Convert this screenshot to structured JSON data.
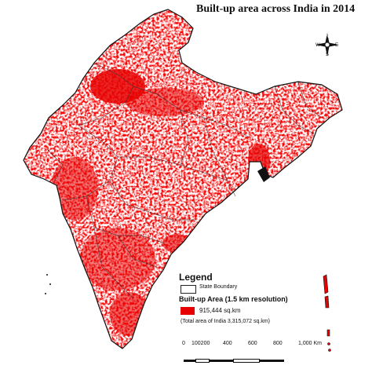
{
  "map": {
    "title": "Built-up area across India in 2014",
    "compass": {
      "n": "N",
      "s": "S",
      "e": "E",
      "w": "W"
    },
    "fill_color": "#e60000",
    "boundary_color": "#222222"
  },
  "legend": {
    "title": "Legend",
    "boundary_label": "State Boundary",
    "builtup_title": "Built-up Area (1.5 km resolution)",
    "builtup_value": "915,444 sq.km",
    "total_note": "(Total area of India 3,315,072 sq.km)"
  },
  "scale": {
    "labels": [
      "0",
      "100200",
      "400",
      "600",
      "800",
      "1,000 Km"
    ]
  }
}
